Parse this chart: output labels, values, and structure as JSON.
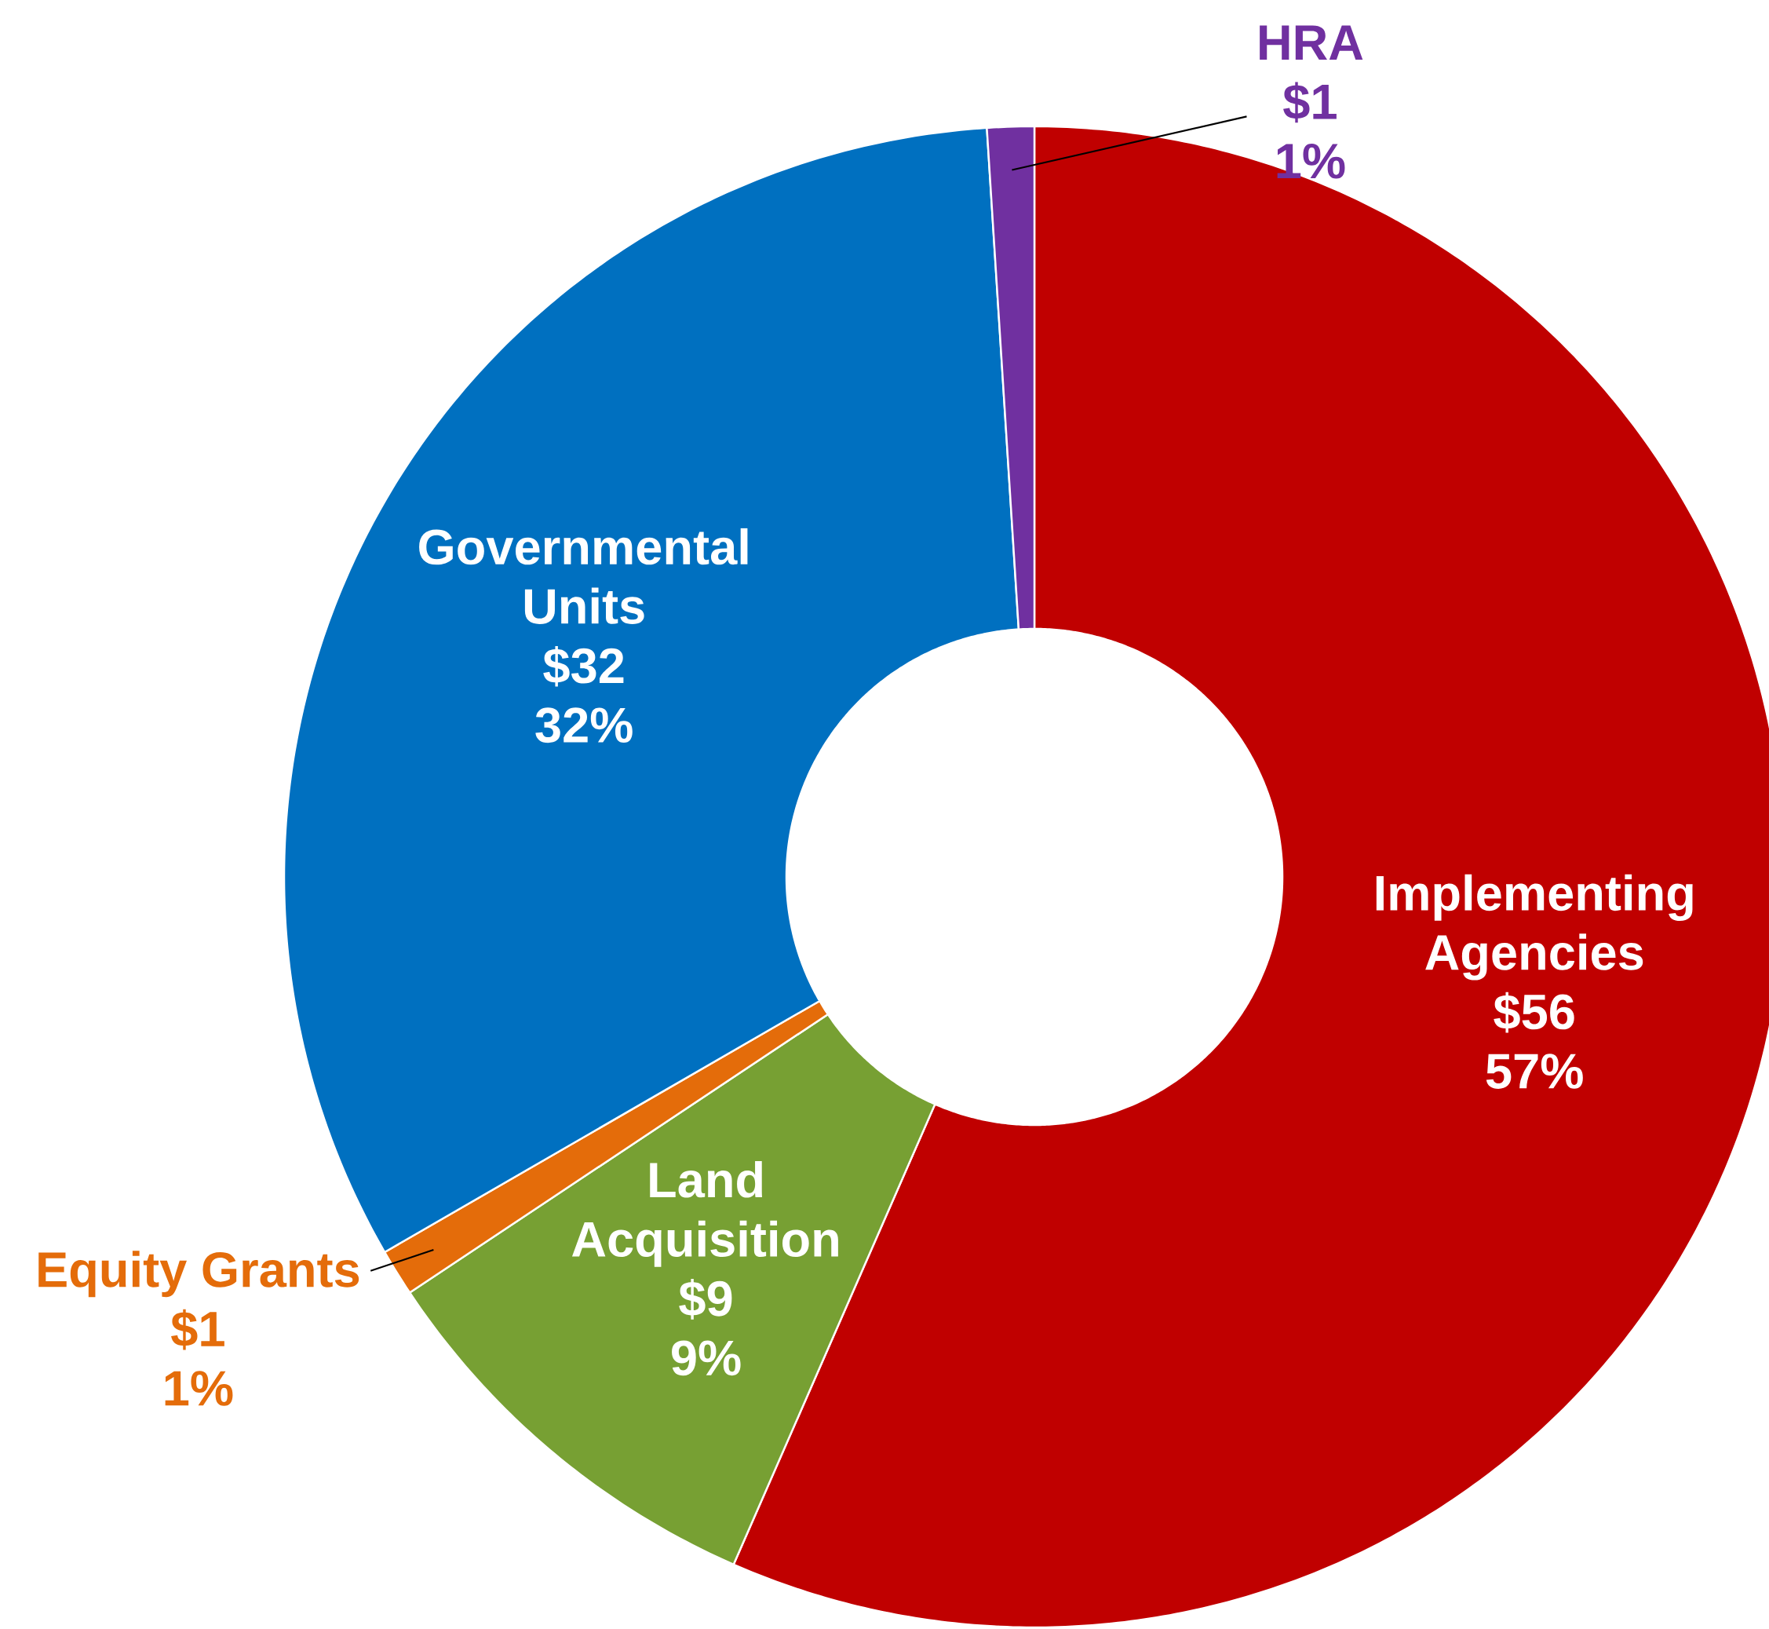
{
  "chart_data": {
    "type": "donut",
    "categories": [
      "Implementing Agencies",
      "Land Acquisition",
      "Equity Grants",
      "Governmental Units",
      "HRA"
    ],
    "values": [
      56,
      9,
      1,
      32,
      1
    ],
    "colors": [
      "#c00000",
      "#77a033",
      "#e46c0a",
      "#0070c0",
      "#7030a0"
    ],
    "value_labels": [
      "$56",
      "$9",
      "$1",
      "$32",
      "$1"
    ],
    "annotations": [
      "57%",
      "9%",
      "1%",
      "32%",
      "1%"
    ]
  }
}
